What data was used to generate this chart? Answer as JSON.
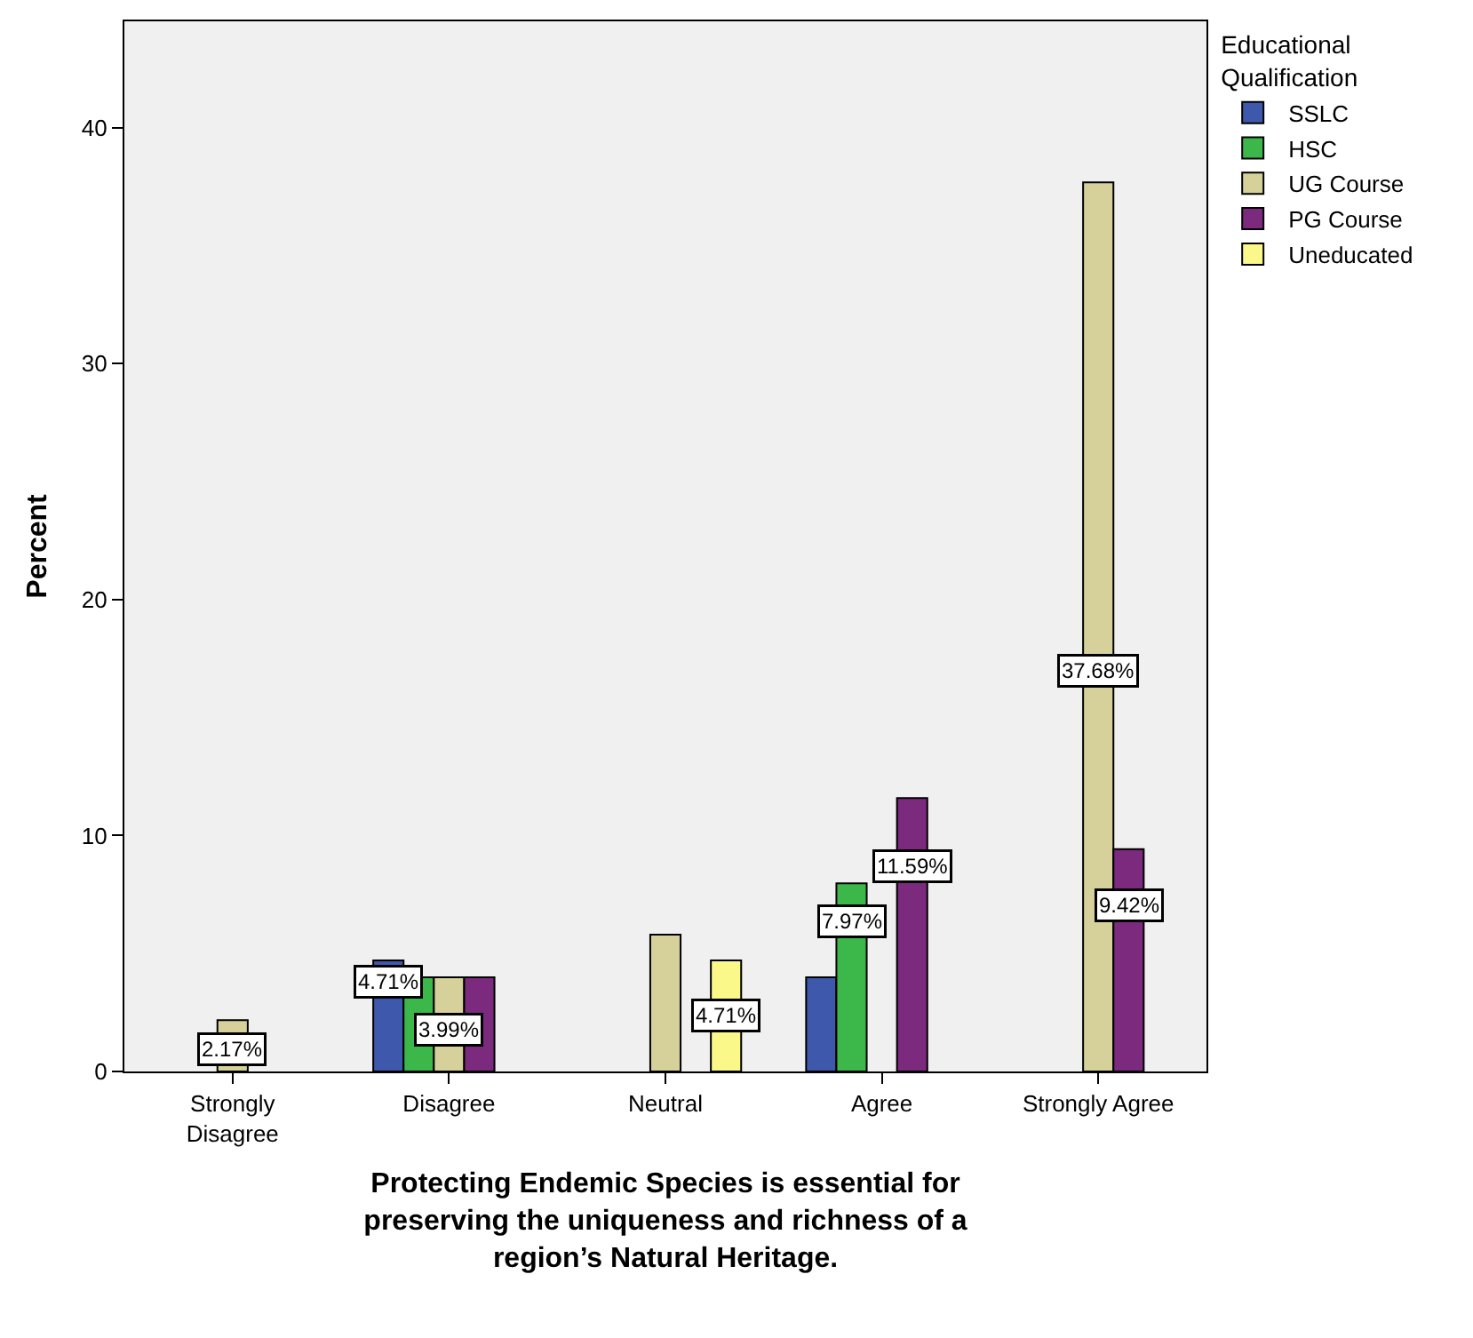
{
  "chart_data": {
    "type": "bar",
    "xlabel": "Protecting Endemic Species is essential for preserving the uniqueness and richness of a region’s Natural Heritage.",
    "ylabel": "Percent",
    "legend_title": "Educational Qualification",
    "categories": [
      "Strongly Disagree",
      "Disagree",
      "Neutral",
      "Agree",
      "Strongly Agree"
    ],
    "series": [
      {
        "name": "SSLC",
        "color": "#3e58ac",
        "values": [
          null,
          4.71,
          null,
          3.99,
          null
        ],
        "value_labels": [
          null,
          "4.71%",
          null,
          null,
          null
        ]
      },
      {
        "name": "HSC",
        "color": "#3cb84a",
        "values": [
          null,
          3.99,
          null,
          7.97,
          null
        ],
        "value_labels": [
          null,
          null,
          null,
          "7.97%",
          null
        ]
      },
      {
        "name": "UG Course",
        "color": "#d6d09a",
        "values": [
          2.17,
          3.99,
          5.8,
          null,
          37.68
        ],
        "value_labels": [
          "2.17%",
          "3.99%",
          null,
          null,
          "37.68%"
        ]
      },
      {
        "name": "PG Course",
        "color": "#7b2a7e",
        "values": [
          null,
          3.99,
          null,
          11.59,
          9.42
        ],
        "value_labels": [
          null,
          null,
          null,
          "11.59%",
          "9.42%"
        ]
      },
      {
        "name": "Uneducated",
        "color": "#fbf88a",
        "values": [
          null,
          null,
          4.71,
          null,
          null
        ],
        "value_labels": [
          null,
          null,
          "4.71%",
          null,
          null
        ]
      }
    ],
    "ylim": [
      0,
      44.5
    ],
    "yticks": [
      0,
      10,
      20,
      30,
      40
    ],
    "grid": false,
    "legend": "top right"
  }
}
